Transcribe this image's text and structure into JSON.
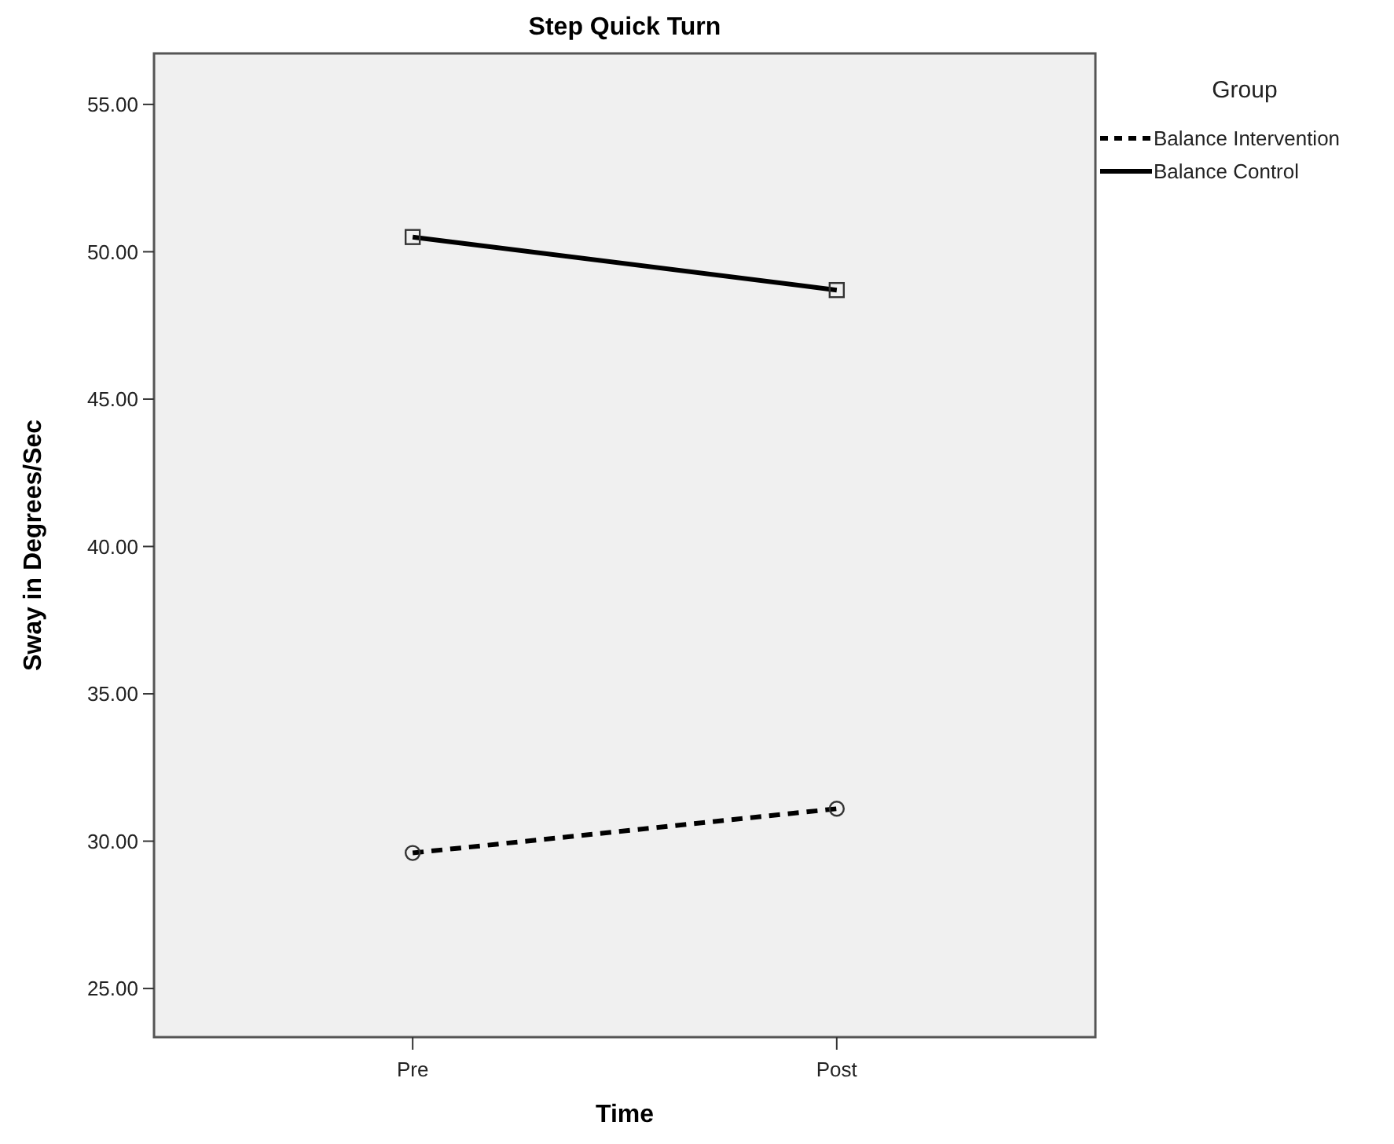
{
  "chart_data": {
    "type": "line",
    "title": "Step Quick Turn",
    "xlabel": "Time",
    "ylabel": "Sway in Degrees/Sec",
    "legend_title": "Group",
    "legend": "top right",
    "categories": [
      "Pre",
      "Post"
    ],
    "ylim": [
      23.35,
      56.73
    ],
    "yticks": [
      {
        "value": 25,
        "label": "25.00"
      },
      {
        "value": 30,
        "label": "30.00"
      },
      {
        "value": 35,
        "label": "35.00"
      },
      {
        "value": 40,
        "label": "40.00"
      },
      {
        "value": 45,
        "label": "45.00"
      },
      {
        "value": 50,
        "label": "50.00"
      },
      {
        "value": 55,
        "label": "55.00"
      }
    ],
    "grid": false,
    "series": [
      {
        "name": "Balance Intervention",
        "color": "#000000",
        "values": [
          29.6,
          31.1
        ],
        "line_style": "dashed",
        "marker": "circle"
      },
      {
        "name": "Balance Control",
        "color": "#000000",
        "values": [
          50.5,
          48.7
        ],
        "line_style": "solid",
        "marker": "square"
      }
    ]
  }
}
